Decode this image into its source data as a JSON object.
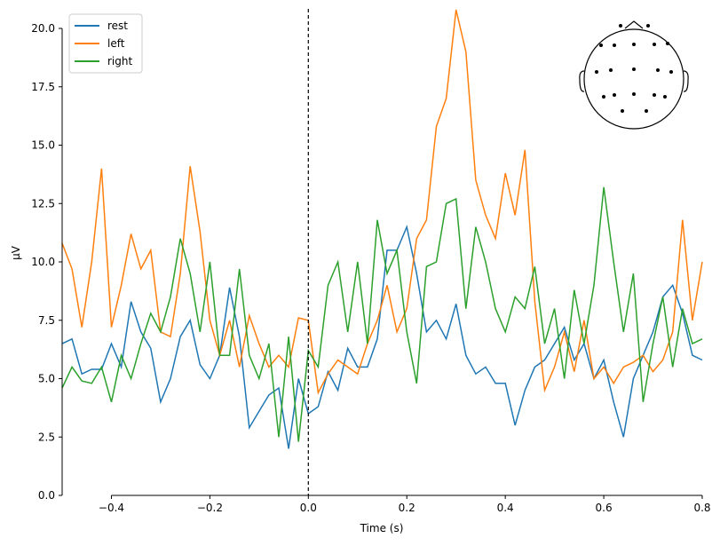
{
  "chart_data": {
    "type": "line",
    "title": "",
    "xlabel": "Time (s)",
    "ylabel": "µV",
    "xlim": [
      -0.5,
      0.8
    ],
    "ylim": [
      0,
      20.8
    ],
    "xticks": [
      -0.4,
      -0.2,
      0.0,
      0.2,
      0.4,
      0.6,
      0.8
    ],
    "xtick_labels": [
      "−0.4",
      "−0.2",
      "0.0",
      "0.2",
      "0.4",
      "0.6",
      "0.8"
    ],
    "yticks": [
      0,
      2.5,
      5,
      7.5,
      10,
      12.5,
      15,
      17.5,
      20
    ],
    "ytick_labels": [
      "0.0",
      "2.5",
      "5.0",
      "7.5",
      "10.0",
      "12.5",
      "15.0",
      "17.5",
      "20.0"
    ],
    "legend_placement": "top-left",
    "vline_x": 0,
    "grid": false,
    "x_start": -0.5,
    "x_step": 0.02,
    "series": [
      {
        "name": "rest",
        "color": "#1f77b4",
        "values": [
          6.5,
          6.7,
          5.2,
          5.4,
          5.4,
          6.5,
          5.5,
          8.3,
          7.0,
          6.3,
          4.0,
          5.0,
          6.8,
          7.5,
          5.6,
          5.0,
          6.0,
          8.9,
          6.8,
          2.9,
          3.6,
          4.3,
          4.6,
          2.0,
          5.0,
          3.5,
          3.8,
          5.3,
          4.5,
          6.3,
          5.5,
          5.5,
          6.7,
          10.5,
          10.5,
          11.5,
          9.5,
          7.0,
          7.5,
          6.7,
          8.2,
          6.0,
          5.2,
          5.5,
          4.8,
          4.8,
          3.0,
          4.5,
          5.5,
          5.8,
          6.5,
          7.2,
          5.8,
          6.5,
          5.0,
          5.8,
          4.0,
          2.5,
          5.0,
          6.0,
          7.0,
          8.5,
          9.0,
          7.8,
          6.0,
          5.8
        ]
      },
      {
        "name": "left",
        "color": "#ff7f0e",
        "values": [
          10.8,
          9.7,
          7.2,
          10.0,
          14.0,
          7.2,
          9.0,
          11.2,
          9.7,
          10.5,
          7.0,
          6.8,
          9.5,
          14.1,
          11.3,
          7.5,
          6.0,
          7.5,
          5.5,
          7.7,
          6.5,
          5.5,
          6.0,
          5.5,
          7.6,
          7.5,
          4.4,
          5.2,
          5.8,
          5.5,
          5.2,
          6.5,
          7.5,
          9.0,
          7.0,
          8.0,
          11.0,
          11.8,
          15.8,
          17.0,
          20.8,
          19.0,
          13.5,
          12.0,
          11.0,
          13.8,
          12.0,
          14.8,
          8.3,
          4.5,
          5.5,
          7.0,
          5.3,
          7.5,
          5.0,
          5.5,
          4.8,
          5.5,
          5.7,
          6.0,
          5.3,
          5.8,
          7.0,
          11.8,
          7.5,
          10.0
        ]
      },
      {
        "name": "right",
        "color": "#2ca02c",
        "values": [
          4.6,
          5.5,
          4.9,
          4.8,
          5.5,
          4.0,
          6.0,
          5.0,
          6.5,
          7.8,
          7.0,
          8.5,
          11.0,
          9.5,
          7.0,
          10.0,
          6.0,
          6.0,
          9.7,
          6.0,
          5.0,
          6.5,
          2.5,
          6.8,
          2.3,
          6.2,
          5.5,
          9.0,
          10.0,
          7.0,
          10.0,
          6.5,
          11.8,
          9.5,
          10.5,
          7.0,
          4.8,
          9.8,
          10.0,
          12.5,
          12.7,
          8.0,
          11.5,
          10.0,
          8.0,
          7.0,
          8.5,
          8.0,
          9.8,
          6.5,
          8.0,
          5.0,
          8.8,
          6.5,
          9.0,
          13.2,
          10.0,
          7.0,
          9.5,
          4.0,
          6.5,
          8.5,
          5.5,
          8.0,
          6.5,
          6.7
        ]
      }
    ]
  }
}
